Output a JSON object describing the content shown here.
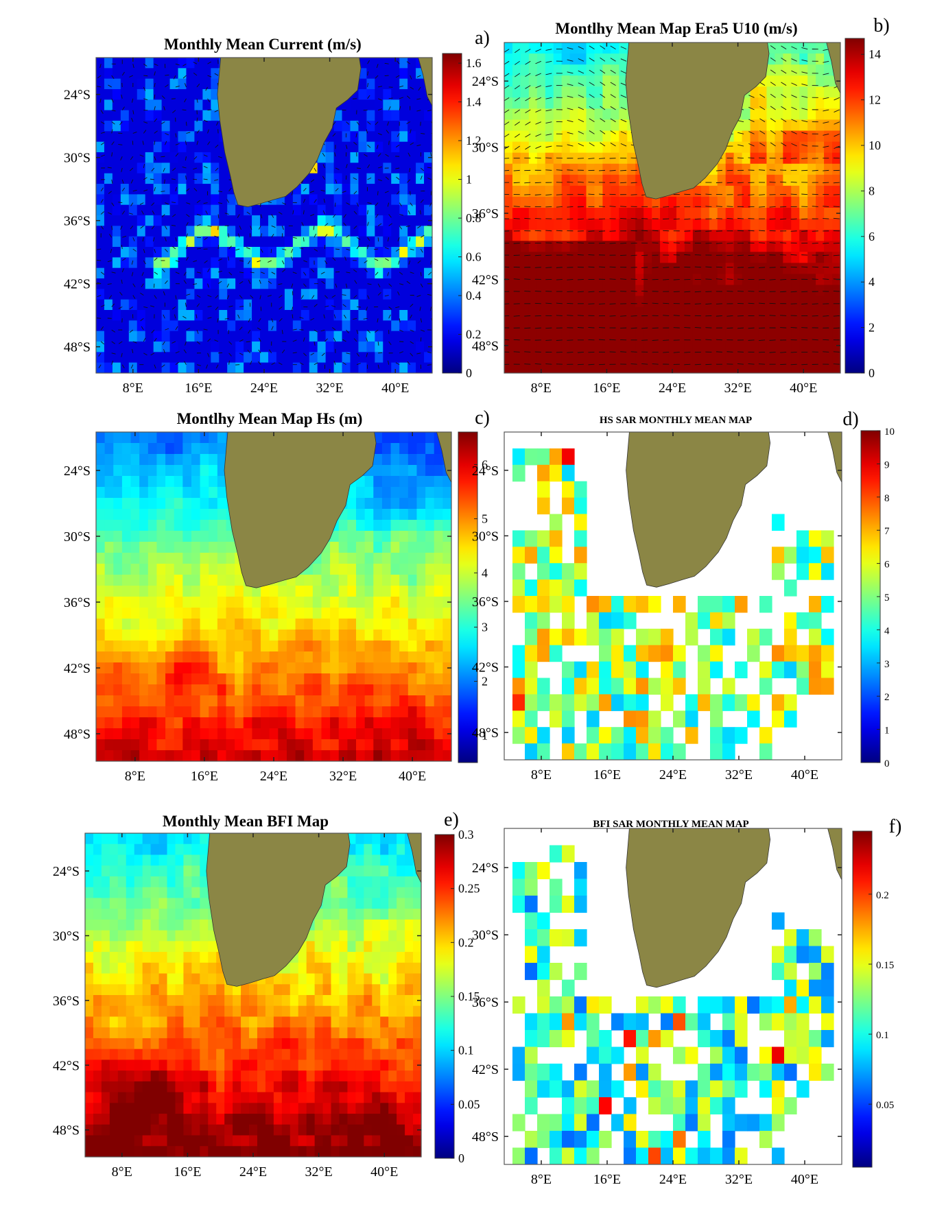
{
  "chart_data": [
    {
      "type": "heatmap",
      "panel_label": "a)",
      "title": "Monthly Mean Current (m/s)",
      "field": "current",
      "vectors": true,
      "x_ticks": [
        "8°E",
        "16°E",
        "24°E",
        "32°E",
        "40°E"
      ],
      "x_tick_values": [
        8,
        16,
        24,
        32,
        40
      ],
      "y_ticks": [
        "24°S",
        "30°S",
        "36°S",
        "42°S",
        "48°S"
      ],
      "y_tick_values": [
        -24,
        -30,
        -36,
        -42,
        -48
      ],
      "xlim": [
        3.5,
        44.5
      ],
      "ylim": [
        -50.5,
        -20.5
      ],
      "colorbar": {
        "min": 0,
        "max": 1.65,
        "ticks": [
          0,
          0.2,
          0.4,
          0.6,
          0.8,
          1,
          1.2,
          1.4,
          1.6
        ],
        "tick_labels": [
          "0",
          "0.2",
          "0.4",
          "0.6",
          "0.8",
          "1",
          "1.2",
          "1.4",
          "1.6"
        ]
      }
    },
    {
      "type": "heatmap",
      "panel_label": "b)",
      "title": "Montlhy Mean Map Era5 U10 (m/s)",
      "field": "wind",
      "vectors": true,
      "x_ticks": [
        "8°E",
        "16°E",
        "24°E",
        "32°E",
        "40°E"
      ],
      "x_tick_values": [
        8,
        16,
        24,
        32,
        40
      ],
      "y_ticks": [
        "24°S",
        "30°S",
        "36°S",
        "42°S",
        "48°S"
      ],
      "y_tick_values": [
        -24,
        -30,
        -36,
        -42,
        -48
      ],
      "xlim": [
        3.5,
        44.5
      ],
      "ylim": [
        -50.5,
        -20.5
      ],
      "colorbar": {
        "min": 0,
        "max": 14.7,
        "ticks": [
          0,
          2,
          4,
          6,
          8,
          10,
          12,
          14
        ],
        "tick_labels": [
          "0",
          "2",
          "4",
          "6",
          "8",
          "10",
          "12",
          "14"
        ]
      }
    },
    {
      "type": "heatmap",
      "panel_label": "c)",
      "title": "Montlhy Mean Map Hs (m)",
      "field": "hs",
      "x_ticks": [
        "8°E",
        "16°E",
        "24°E",
        "32°E",
        "40°E"
      ],
      "x_tick_values": [
        8,
        16,
        24,
        32,
        40
      ],
      "y_ticks": [
        "24°S",
        "30°S",
        "36°S",
        "42°S",
        "48°S"
      ],
      "y_tick_values": [
        -24,
        -30,
        -36,
        -42,
        -48
      ],
      "xlim": [
        3.5,
        44.5
      ],
      "ylim": [
        -50.5,
        -20.5
      ],
      "colorbar": {
        "min": 0.5,
        "max": 6.6,
        "ticks": [
          1,
          2,
          3,
          4,
          5,
          6
        ],
        "tick_labels": [
          "1",
          "2",
          "3",
          "4",
          "5",
          "6"
        ]
      }
    },
    {
      "type": "heatmap",
      "panel_label": "d)",
      "title": "HS SAR MONTHLY MEAN MAP",
      "field": "sar_hs",
      "gridded": true,
      "x_ticks": [
        "8°E",
        "16°E",
        "24°E",
        "32°E",
        "40°E"
      ],
      "x_tick_values": [
        8,
        16,
        24,
        32,
        40
      ],
      "y_ticks": [
        "24°S",
        "30°S",
        "36°S",
        "42°S",
        "48°S"
      ],
      "y_tick_values": [
        -24,
        -30,
        -36,
        -42,
        -48
      ],
      "xlim": [
        3.5,
        44.5
      ],
      "ylim": [
        -50.5,
        -20.5
      ],
      "colorbar": {
        "min": 0,
        "max": 10,
        "ticks": [
          0,
          1,
          2,
          3,
          4,
          5,
          6,
          7,
          8,
          9,
          10
        ],
        "tick_labels": [
          "0",
          "1",
          "2",
          "3",
          "4",
          "5",
          "6",
          "7",
          "8",
          "9",
          "10"
        ]
      }
    },
    {
      "type": "heatmap",
      "panel_label": "e)",
      "title": "Monthly Mean BFI Map",
      "field": "bfi",
      "x_ticks": [
        "8°E",
        "16°E",
        "24°E",
        "32°E",
        "40°E"
      ],
      "x_tick_values": [
        8,
        16,
        24,
        32,
        40
      ],
      "y_ticks": [
        "24°S",
        "30°S",
        "36°S",
        "42°S",
        "48°S"
      ],
      "y_tick_values": [
        -24,
        -30,
        -36,
        -42,
        -48
      ],
      "xlim": [
        3.5,
        44.5
      ],
      "ylim": [
        -50.5,
        -20.5
      ],
      "colorbar": {
        "min": 0,
        "max": 0.3,
        "ticks": [
          0,
          0.05,
          0.1,
          0.15,
          0.2,
          0.25,
          0.3
        ],
        "tick_labels": [
          "0",
          "0.05",
          "0.1",
          "0.15",
          "0.2",
          "0.25",
          "0.3"
        ]
      }
    },
    {
      "type": "heatmap",
      "panel_label": "f)",
      "title": "BFI SAR MONTHLY MEAN MAP",
      "field": "sar_bfi",
      "gridded": true,
      "x_ticks": [
        "8°E",
        "16°E",
        "24°E",
        "32°E",
        "40°E"
      ],
      "x_tick_values": [
        8,
        16,
        24,
        32,
        40
      ],
      "y_ticks": [
        "24°S",
        "30°S",
        "36°S",
        "42°S",
        "48°S"
      ],
      "y_tick_values": [
        -24,
        -30,
        -36,
        -42,
        -48
      ],
      "xlim": [
        3.5,
        44.5
      ],
      "ylim": [
        -50.5,
        -20.5
      ],
      "colorbar": {
        "min": 0.005,
        "max": 0.245,
        "ticks": [
          0.05,
          0.1,
          0.15,
          0.2
        ],
        "tick_labels": [
          "0.05",
          "0.1",
          "0.15",
          "0.2"
        ]
      }
    }
  ],
  "land_color": "#8b8645",
  "colormap": "jet"
}
